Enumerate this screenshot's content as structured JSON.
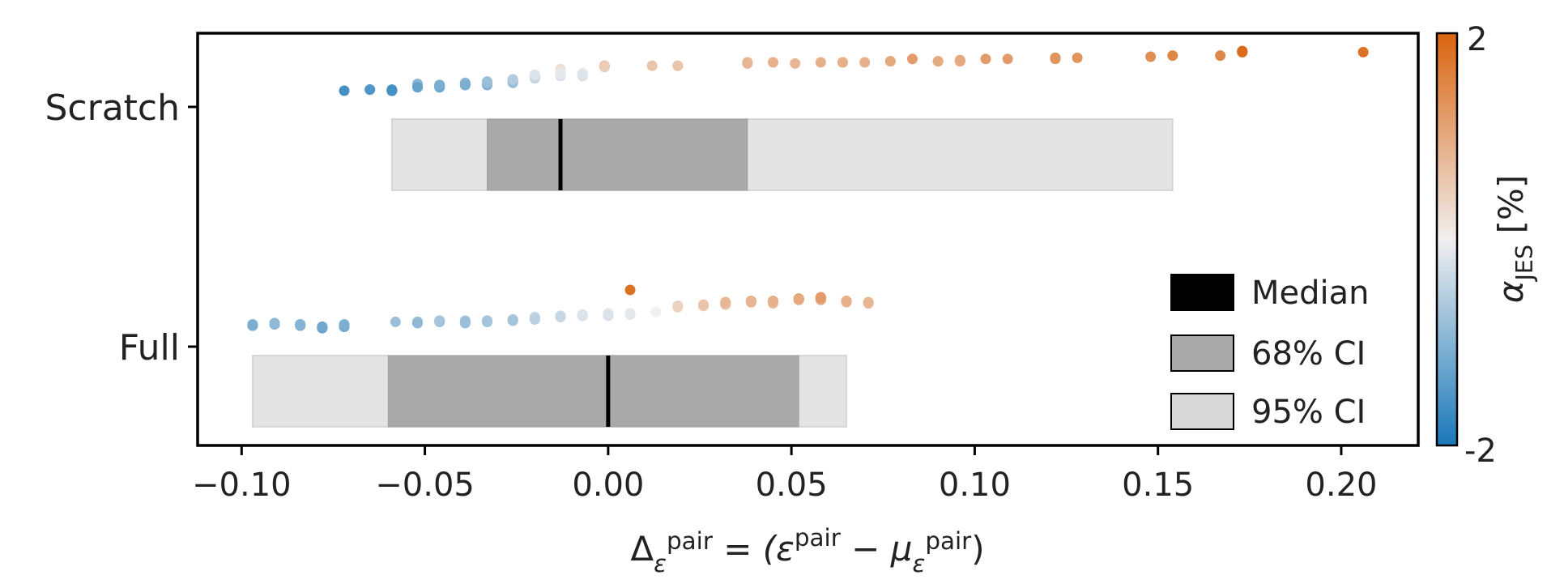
{
  "chart_data": {
    "type": "scatter",
    "orientation": "horizontal",
    "xlabel": "Δ_ε^pair = (ε^pair − μ_ε^pair)",
    "xlim": [
      -0.112,
      0.221
    ],
    "x_ticks": [
      -0.1,
      -0.05,
      0.0,
      0.05,
      0.1,
      0.15,
      0.2
    ],
    "x_tick_labels": [
      "−0.10",
      "−0.05",
      "0.00",
      "0.05",
      "0.10",
      "0.15",
      "0.20"
    ],
    "categories": [
      "Scratch",
      "Full"
    ],
    "legend": {
      "position": "lower-right",
      "items": [
        {
          "key": "median",
          "label": "Median",
          "color": "#000000"
        },
        {
          "key": "ci68",
          "label": "68% CI",
          "color": "#a9a9a9"
        },
        {
          "key": "ci95",
          "label": "95% CI",
          "color": "#d9d9d9"
        }
      ]
    },
    "colorbar": {
      "label": "α_JES [%]",
      "min": -2,
      "max": 2,
      "min_label": "-2",
      "max_label": "2",
      "colors": [
        "#1a78b8",
        "#f1efef",
        "#d9640f"
      ]
    },
    "intervals": [
      {
        "category": "Scratch",
        "median": -0.013,
        "ci68": [
          -0.033,
          0.038
        ],
        "ci95": [
          -0.059,
          0.154
        ]
      },
      {
        "category": "Full",
        "median": 0.0,
        "ci68": [
          -0.06,
          0.052
        ],
        "ci95": [
          -0.097,
          0.065
        ]
      }
    ],
    "series": [
      {
        "category": "Scratch",
        "points": [
          [
            -0.072,
            -1.6
          ],
          [
            -0.065,
            -1.5
          ],
          [
            -0.065,
            -1.5
          ],
          [
            -0.059,
            -1.6
          ],
          [
            -0.059,
            -1.6
          ],
          [
            -0.059,
            -1.5
          ],
          [
            -0.059,
            -1.6
          ],
          [
            -0.059,
            -1.6
          ],
          [
            -0.052,
            -1.1
          ],
          [
            -0.052,
            -1.2
          ],
          [
            -0.052,
            -1.1
          ],
          [
            -0.052,
            -1.0
          ],
          [
            -0.052,
            -1.3
          ],
          [
            -0.046,
            -1.3
          ],
          [
            -0.046,
            -1.2
          ],
          [
            -0.046,
            -1.1
          ],
          [
            -0.046,
            -1.2
          ],
          [
            -0.046,
            -1.1
          ],
          [
            -0.039,
            -1.1
          ],
          [
            -0.039,
            -0.9
          ],
          [
            -0.039,
            -1.0
          ],
          [
            -0.039,
            -1.0
          ],
          [
            -0.039,
            -1.1
          ],
          [
            -0.033,
            -1.0
          ],
          [
            -0.033,
            -1.1
          ],
          [
            -0.033,
            -1.0
          ],
          [
            -0.033,
            -0.8
          ],
          [
            -0.033,
            -0.9
          ],
          [
            -0.033,
            -0.9
          ],
          [
            -0.033,
            -0.8
          ],
          [
            -0.026,
            -0.8
          ],
          [
            -0.026,
            -0.7
          ],
          [
            -0.026,
            -0.8
          ],
          [
            -0.026,
            -0.8
          ],
          [
            -0.026,
            -0.7
          ],
          [
            -0.026,
            -0.9
          ],
          [
            -0.026,
            -0.8
          ],
          [
            -0.026,
            -0.6
          ],
          [
            -0.02,
            -0.4
          ],
          [
            -0.02,
            -0.2
          ],
          [
            -0.02,
            -0.3
          ],
          [
            -0.02,
            -0.2
          ],
          [
            -0.02,
            -0.5
          ],
          [
            -0.02,
            -0.3
          ],
          [
            -0.02,
            -0.4
          ],
          [
            -0.02,
            -0.2
          ],
          [
            -0.013,
            0.2
          ],
          [
            -0.013,
            0.3
          ],
          [
            -0.013,
            -0.3
          ],
          [
            -0.013,
            -0.2
          ],
          [
            -0.013,
            -0.1
          ],
          [
            -0.013,
            0.2
          ],
          [
            -0.013,
            -0.1
          ],
          [
            -0.007,
            -0.2
          ],
          [
            -0.007,
            -0.3
          ],
          [
            -0.007,
            -0.2
          ],
          [
            -0.007,
            -0.1
          ],
          [
            -0.007,
            0.0
          ],
          [
            -0.007,
            -0.3
          ],
          [
            -0.007,
            -0.1
          ],
          [
            -0.007,
            -0.2
          ],
          [
            -0.001,
            0.6
          ],
          [
            -0.001,
            0.5
          ],
          [
            -0.001,
            0.6
          ],
          [
            -0.001,
            0.5
          ],
          [
            -0.001,
            0.6
          ],
          [
            -0.001,
            0.6
          ],
          [
            -0.001,
            0.5
          ],
          [
            0.012,
            0.6
          ],
          [
            0.012,
            0.6
          ],
          [
            0.019,
            0.6
          ],
          [
            0.019,
            0.6
          ],
          [
            0.019,
            0.6
          ],
          [
            0.038,
            0.9
          ],
          [
            0.038,
            0.8
          ],
          [
            0.045,
            0.9
          ],
          [
            0.051,
            0.8
          ],
          [
            0.058,
            0.9
          ],
          [
            0.064,
            0.9
          ],
          [
            0.064,
            0.9
          ],
          [
            0.064,
            0.9
          ],
          [
            0.07,
            0.9
          ],
          [
            0.077,
            1.0
          ],
          [
            0.077,
            1.0
          ],
          [
            0.083,
            1.2
          ],
          [
            0.09,
            1.0
          ],
          [
            0.09,
            1.0
          ],
          [
            0.096,
            1.1
          ],
          [
            0.096,
            1.0
          ],
          [
            0.096,
            1.0
          ],
          [
            0.103,
            1.2
          ],
          [
            0.109,
            1.2
          ],
          [
            0.122,
            1.2
          ],
          [
            0.122,
            1.3
          ],
          [
            0.122,
            1.3
          ],
          [
            0.128,
            1.3
          ],
          [
            0.148,
            1.4
          ],
          [
            0.154,
            1.5
          ],
          [
            0.167,
            1.5
          ],
          [
            0.173,
            1.8
          ],
          [
            0.173,
            1.8
          ],
          [
            0.173,
            1.9
          ],
          [
            0.206,
            1.8
          ]
        ]
      },
      {
        "category": "Full",
        "points": [
          [
            -0.097,
            -1.1
          ],
          [
            -0.097,
            -1.1
          ],
          [
            -0.097,
            -1.0
          ],
          [
            -0.097,
            -1.0
          ],
          [
            -0.097,
            -1.1
          ],
          [
            -0.091,
            -1.0
          ],
          [
            -0.091,
            -0.9
          ],
          [
            -0.091,
            -1.0
          ],
          [
            -0.091,
            -0.9
          ],
          [
            -0.084,
            -1.1
          ],
          [
            -0.084,
            -1.0
          ],
          [
            -0.084,
            -1.1
          ],
          [
            -0.084,
            -1.0
          ],
          [
            -0.084,
            -1.0
          ],
          [
            -0.078,
            -1.3
          ],
          [
            -0.078,
            -1.2
          ],
          [
            -0.078,
            -1.2
          ],
          [
            -0.078,
            -1.3
          ],
          [
            -0.078,
            -1.3
          ],
          [
            -0.078,
            -1.2
          ],
          [
            -0.072,
            -1.1
          ],
          [
            -0.072,
            -1.2
          ],
          [
            -0.072,
            -1.2
          ],
          [
            -0.072,
            -1.0
          ],
          [
            -0.072,
            -1.1
          ],
          [
            -0.058,
            -0.8
          ],
          [
            -0.052,
            -0.8
          ],
          [
            -0.052,
            -0.9
          ],
          [
            -0.052,
            -0.8
          ],
          [
            -0.052,
            -0.9
          ],
          [
            -0.046,
            -0.8
          ],
          [
            -0.046,
            -0.7
          ],
          [
            -0.046,
            -0.8
          ],
          [
            -0.046,
            -0.7
          ],
          [
            -0.039,
            -0.9
          ],
          [
            -0.039,
            -0.8
          ],
          [
            -0.039,
            -0.8
          ],
          [
            -0.039,
            -0.7
          ],
          [
            -0.039,
            -0.8
          ],
          [
            -0.033,
            -0.8
          ],
          [
            -0.033,
            -0.7
          ],
          [
            -0.033,
            -0.8
          ],
          [
            -0.033,
            -0.7
          ],
          [
            -0.026,
            -0.6
          ],
          [
            -0.026,
            -0.7
          ],
          [
            -0.026,
            -0.6
          ],
          [
            -0.026,
            -0.7
          ],
          [
            -0.02,
            -0.5
          ],
          [
            -0.02,
            -0.4
          ],
          [
            -0.02,
            -0.6
          ],
          [
            -0.02,
            -0.5
          ],
          [
            -0.013,
            -0.4
          ],
          [
            -0.013,
            -0.3
          ],
          [
            -0.013,
            -0.3
          ],
          [
            -0.013,
            -0.4
          ],
          [
            -0.013,
            -0.4
          ],
          [
            -0.007,
            -0.3
          ],
          [
            -0.007,
            -0.2
          ],
          [
            -0.007,
            -0.3
          ],
          [
            -0.007,
            -0.3
          ],
          [
            -0.007,
            -0.2
          ],
          [
            0.0,
            -0.2
          ],
          [
            0.0,
            -0.3
          ],
          [
            0.0,
            -0.2
          ],
          [
            0.0,
            -0.3
          ],
          [
            0.0,
            -0.1
          ],
          [
            0.0,
            -0.2
          ],
          [
            0.006,
            -0.2
          ],
          [
            0.006,
            -0.1
          ],
          [
            0.006,
            1.8
          ],
          [
            0.013,
            0.0
          ],
          [
            0.019,
            0.5
          ],
          [
            0.019,
            0.4
          ],
          [
            0.026,
            0.5
          ],
          [
            0.026,
            0.6
          ],
          [
            0.026,
            0.5
          ],
          [
            0.026,
            0.5
          ],
          [
            0.026,
            0.6
          ],
          [
            0.026,
            0.6
          ],
          [
            0.032,
            0.8
          ],
          [
            0.032,
            0.7
          ],
          [
            0.032,
            0.8
          ],
          [
            0.032,
            0.6
          ],
          [
            0.032,
            0.7
          ],
          [
            0.032,
            0.8
          ],
          [
            0.039,
            0.9
          ],
          [
            0.039,
            0.8
          ],
          [
            0.039,
            0.9
          ],
          [
            0.039,
            0.8
          ],
          [
            0.039,
            0.9
          ],
          [
            0.039,
            0.8
          ],
          [
            0.045,
            0.9
          ],
          [
            0.045,
            0.7
          ],
          [
            0.045,
            0.9
          ],
          [
            0.045,
            0.8
          ],
          [
            0.045,
            0.9
          ],
          [
            0.052,
            1.1
          ],
          [
            0.052,
            1.0
          ],
          [
            0.052,
            1.0
          ],
          [
            0.052,
            1.1
          ],
          [
            0.052,
            1.0
          ],
          [
            0.052,
            1.0
          ],
          [
            0.058,
            1.2
          ],
          [
            0.058,
            1.0
          ],
          [
            0.058,
            1.1
          ],
          [
            0.058,
            1.2
          ],
          [
            0.058,
            1.0
          ],
          [
            0.058,
            1.1
          ],
          [
            0.058,
            1.2
          ],
          [
            0.065,
            0.9
          ],
          [
            0.065,
            0.8
          ],
          [
            0.065,
            0.9
          ],
          [
            0.065,
            0.9
          ],
          [
            0.071,
            0.8
          ],
          [
            0.071,
            0.7
          ],
          [
            0.071,
            0.8
          ]
        ]
      }
    ]
  }
}
